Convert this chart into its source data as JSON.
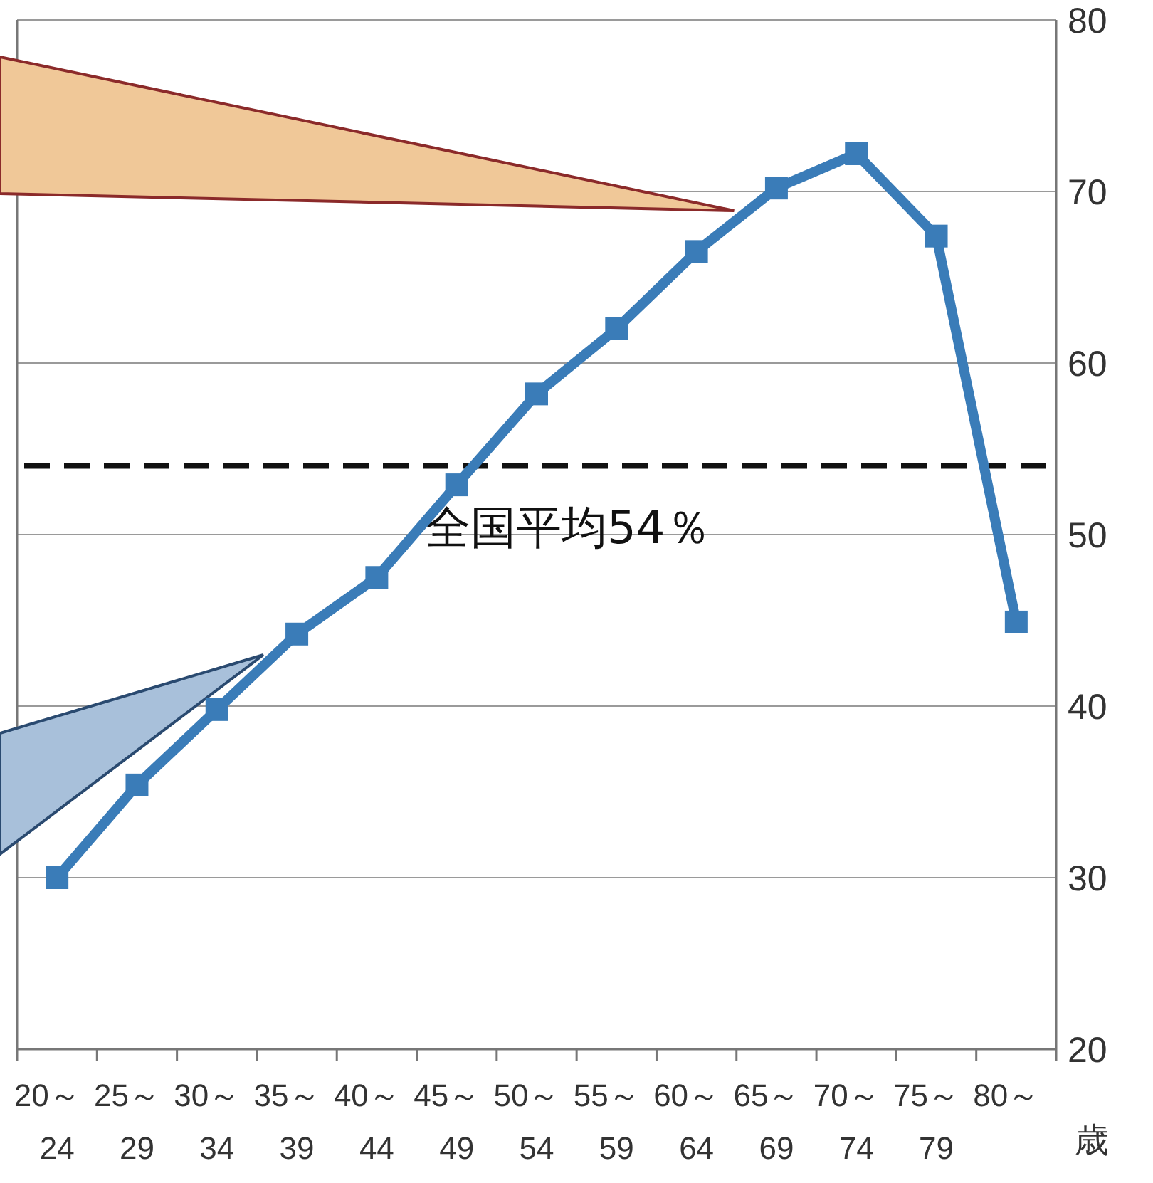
{
  "chart_data": {
    "type": "line",
    "xlabel": "歳",
    "categories": [
      "20～\n24",
      "25～\n29",
      "30～\n34",
      "35～\n39",
      "40～\n44",
      "45～\n49",
      "50～\n54",
      "55～\n59",
      "60～\n64",
      "65～\n69",
      "70～\n74",
      "75～\n79",
      "80～"
    ],
    "series": [
      {
        "color": "#3a7cb8",
        "values": [
          30,
          35.4,
          39.8,
          44.2,
          47.5,
          52.9,
          58.2,
          62.0,
          66.5,
          70.2,
          72.2,
          67.4,
          44.9
        ]
      }
    ],
    "ylim": [
      20,
      80
    ],
    "yticks": [
      20,
      30,
      40,
      50,
      60,
      70,
      80
    ],
    "grid": "y",
    "marker": "square",
    "line_style": "solid",
    "ref_lines": [
      {
        "axis": "y",
        "value": 54,
        "label": "全国平均54％",
        "color": "#111111",
        "line_style": "dashed"
      }
    ]
  }
}
